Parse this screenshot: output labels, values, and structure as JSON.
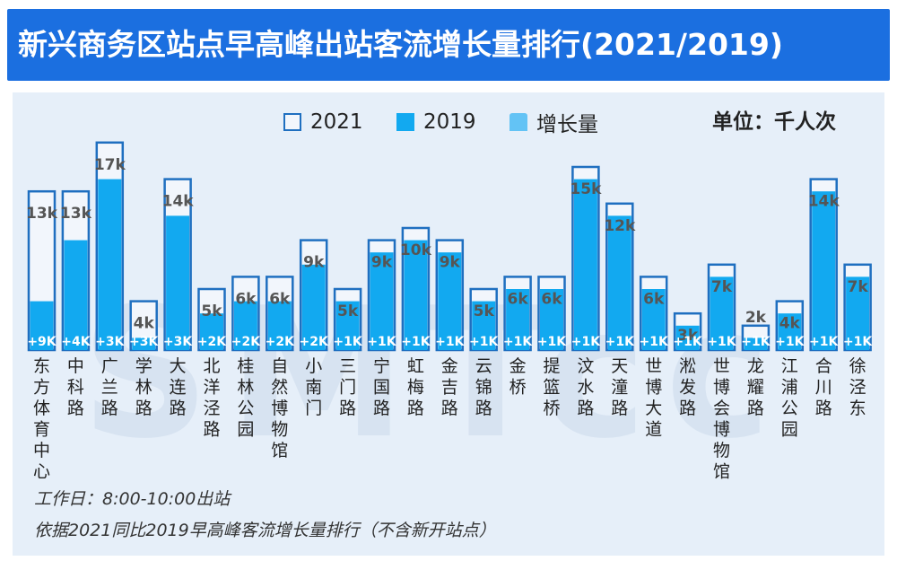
{
  "header": {
    "title": "新兴商务区站点早高峰出站客流增长量排行(2021/2019)"
  },
  "legend": {
    "items": [
      "2021",
      "2019",
      "增长量"
    ]
  },
  "unit": "单位：千人次",
  "notes": {
    "line1": "工作日：8:00-10:00出站",
    "line2": "依据2021同比2019早高峰客流增长量排行（不含新开站点）"
  },
  "watermark": "SMTcc",
  "colors": {
    "bar_2021_fill": "#f2f6fc",
    "bar_2021_border": "#1f6fc0",
    "bar_2019": "#12a9f0",
    "growth": "#63c3f5",
    "banner": "#1b6fe0"
  },
  "chart_data": {
    "type": "bar",
    "title": "新兴商务区站点早高峰出站客流增长量排行(2021/2019)",
    "unit": "千人次",
    "categories": [
      "东方体育中心",
      "中科路",
      "广兰路",
      "学林路",
      "大连路",
      "北洋泾路",
      "桂林公园",
      "自然博物馆",
      "小南门",
      "三门路",
      "宁国路",
      "虹梅路",
      "金吉路",
      "云锦路",
      "金桥",
      "提篮桥",
      "汶水路",
      "天潼路",
      "世博大道",
      "淞发路",
      "世博会博物馆",
      "龙耀路",
      "江浦公园",
      "合川路",
      "徐泾东"
    ],
    "series": [
      {
        "name": "2021",
        "values": [
          13,
          13,
          17,
          4,
          14,
          5,
          6,
          6,
          9,
          5,
          9,
          10,
          9,
          5,
          6,
          6,
          15,
          12,
          6,
          3,
          7,
          2,
          4,
          14,
          7
        ],
        "labels": [
          "13k",
          "13k",
          "17k",
          "4k",
          "14k",
          "5k",
          "6k",
          "6k",
          "9k",
          "5k",
          "9k",
          "10k",
          "9k",
          "5k",
          "6k",
          "6k",
          "15k",
          "12k",
          "6k",
          "3k",
          "7k",
          "2k",
          "4k",
          "14k",
          "7k"
        ]
      },
      {
        "name": "2019",
        "values": [
          4,
          9,
          14,
          1,
          11,
          3,
          4,
          4,
          7,
          4,
          8,
          9,
          8,
          4,
          5,
          5,
          14,
          11,
          5,
          2,
          6,
          1,
          3,
          13,
          6
        ]
      },
      {
        "name": "增长量",
        "values": [
          9,
          4,
          3,
          3,
          3,
          2,
          2,
          2,
          2,
          1,
          1,
          1,
          1,
          1,
          1,
          1,
          1,
          1,
          1,
          1,
          1,
          1,
          1,
          1,
          1
        ],
        "labels": [
          "+9K",
          "+4K",
          "+3K",
          "+3K",
          "+3K",
          "+2K",
          "+2K",
          "+2K",
          "+2K",
          "+1K",
          "+1K",
          "+1K",
          "+1K",
          "+1K",
          "+1K",
          "+1K",
          "+1K",
          "+1K",
          "+1K",
          "+1K",
          "+1K",
          "+1K",
          "+1K",
          "+1K",
          "+1K"
        ]
      }
    ],
    "legend_position": "top-right",
    "grid": false
  }
}
